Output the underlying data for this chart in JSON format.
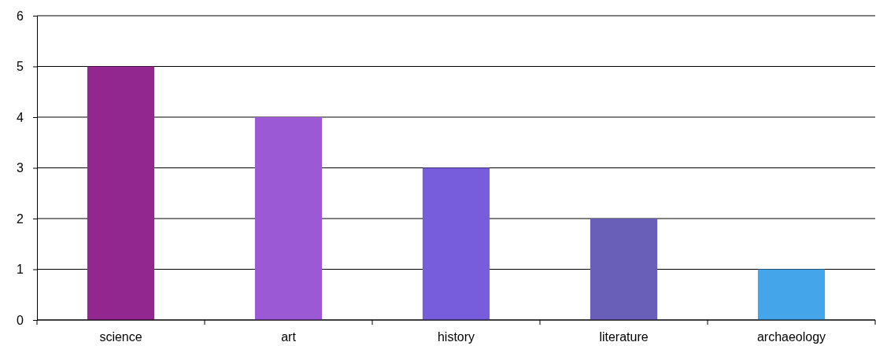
{
  "chart_data": {
    "type": "bar",
    "categories": [
      "science",
      "art",
      "history",
      "literature",
      "archaeology"
    ],
    "values": [
      5,
      4,
      3,
      2,
      1
    ],
    "colors": [
      "#92278f",
      "#9b59d6",
      "#775cdb",
      "#6a5fb8",
      "#45a5ea"
    ],
    "ylim": [
      0,
      6
    ],
    "yticks": [
      0,
      1,
      2,
      3,
      4,
      5,
      6
    ],
    "grid": true
  }
}
